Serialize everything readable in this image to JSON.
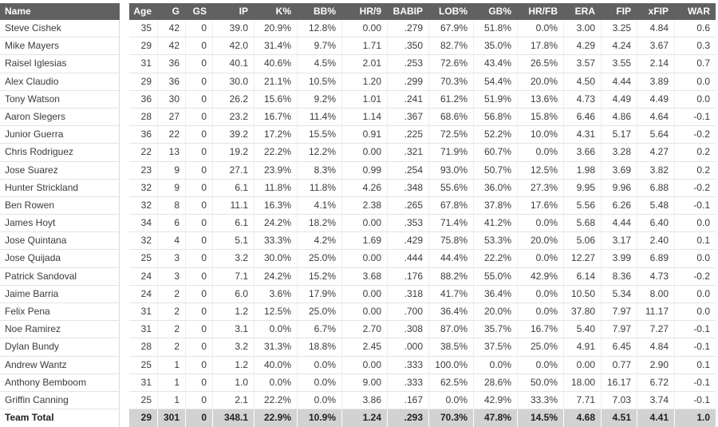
{
  "chart_data": {
    "type": "table",
    "columns": [
      {
        "id": "name",
        "label": "Name"
      },
      {
        "id": "age",
        "label": "Age"
      },
      {
        "id": "g",
        "label": "G"
      },
      {
        "id": "gs",
        "label": "GS"
      },
      {
        "id": "ip",
        "label": "IP"
      },
      {
        "id": "k-pct",
        "label": "K%"
      },
      {
        "id": "bb-pct",
        "label": "BB%"
      },
      {
        "id": "hr9",
        "label": "HR/9"
      },
      {
        "id": "babip",
        "label": "BABIP"
      },
      {
        "id": "lob-pct",
        "label": "LOB%"
      },
      {
        "id": "gb-pct",
        "label": "GB%"
      },
      {
        "id": "hrfb",
        "label": "HR/FB"
      },
      {
        "id": "era",
        "label": "ERA"
      },
      {
        "id": "fip",
        "label": "FIP"
      },
      {
        "id": "xfip",
        "label": "xFIP"
      },
      {
        "id": "war",
        "label": "WAR"
      }
    ],
    "rows": [
      {
        "name": "Steve Cishek",
        "values": [
          "35",
          "42",
          "0",
          "39.0",
          "20.9%",
          "12.8%",
          "0.00",
          ".279",
          "67.9%",
          "51.8%",
          "0.0%",
          "3.00",
          "3.25",
          "4.84",
          "0.6"
        ]
      },
      {
        "name": "Mike Mayers",
        "values": [
          "29",
          "42",
          "0",
          "42.0",
          "31.4%",
          "9.7%",
          "1.71",
          ".350",
          "82.7%",
          "35.0%",
          "17.8%",
          "4.29",
          "4.24",
          "3.67",
          "0.3"
        ]
      },
      {
        "name": "Raisel Iglesias",
        "values": [
          "31",
          "36",
          "0",
          "40.1",
          "40.6%",
          "4.5%",
          "2.01",
          ".253",
          "72.6%",
          "43.4%",
          "26.5%",
          "3.57",
          "3.55",
          "2.14",
          "0.7"
        ]
      },
      {
        "name": "Alex Claudio",
        "values": [
          "29",
          "36",
          "0",
          "30.0",
          "21.1%",
          "10.5%",
          "1.20",
          ".299",
          "70.3%",
          "54.4%",
          "20.0%",
          "4.50",
          "4.44",
          "3.89",
          "0.0"
        ]
      },
      {
        "name": "Tony Watson",
        "values": [
          "36",
          "30",
          "0",
          "26.2",
          "15.6%",
          "9.2%",
          "1.01",
          ".241",
          "61.2%",
          "51.9%",
          "13.6%",
          "4.73",
          "4.49",
          "4.49",
          "0.0"
        ]
      },
      {
        "name": "Aaron Slegers",
        "values": [
          "28",
          "27",
          "0",
          "23.2",
          "16.7%",
          "11.4%",
          "1.14",
          ".367",
          "68.6%",
          "56.8%",
          "15.8%",
          "6.46",
          "4.86",
          "4.64",
          "-0.1"
        ]
      },
      {
        "name": "Junior Guerra",
        "values": [
          "36",
          "22",
          "0",
          "39.2",
          "17.2%",
          "15.5%",
          "0.91",
          ".225",
          "72.5%",
          "52.2%",
          "10.0%",
          "4.31",
          "5.17",
          "5.64",
          "-0.2"
        ]
      },
      {
        "name": "Chris Rodriguez",
        "values": [
          "22",
          "13",
          "0",
          "19.2",
          "22.2%",
          "12.2%",
          "0.00",
          ".321",
          "71.9%",
          "60.7%",
          "0.0%",
          "3.66",
          "3.28",
          "4.27",
          "0.2"
        ]
      },
      {
        "name": "Jose Suarez",
        "values": [
          "23",
          "9",
          "0",
          "27.1",
          "23.9%",
          "8.3%",
          "0.99",
          ".254",
          "93.0%",
          "50.7%",
          "12.5%",
          "1.98",
          "3.69",
          "3.82",
          "0.2"
        ]
      },
      {
        "name": "Hunter Strickland",
        "values": [
          "32",
          "9",
          "0",
          "6.1",
          "11.8%",
          "11.8%",
          "4.26",
          ".348",
          "55.6%",
          "36.0%",
          "27.3%",
          "9.95",
          "9.96",
          "6.88",
          "-0.2"
        ]
      },
      {
        "name": "Ben Rowen",
        "values": [
          "32",
          "8",
          "0",
          "11.1",
          "16.3%",
          "4.1%",
          "2.38",
          ".265",
          "67.8%",
          "37.8%",
          "17.6%",
          "5.56",
          "6.26",
          "5.48",
          "-0.1"
        ]
      },
      {
        "name": "James Hoyt",
        "values": [
          "34",
          "6",
          "0",
          "6.1",
          "24.2%",
          "18.2%",
          "0.00",
          ".353",
          "71.4%",
          "41.2%",
          "0.0%",
          "5.68",
          "4.44",
          "6.40",
          "0.0"
        ]
      },
      {
        "name": "Jose Quintana",
        "values": [
          "32",
          "4",
          "0",
          "5.1",
          "33.3%",
          "4.2%",
          "1.69",
          ".429",
          "75.8%",
          "53.3%",
          "20.0%",
          "5.06",
          "3.17",
          "2.40",
          "0.1"
        ]
      },
      {
        "name": "Jose Quijada",
        "values": [
          "25",
          "3",
          "0",
          "3.2",
          "30.0%",
          "25.0%",
          "0.00",
          ".444",
          "44.4%",
          "22.2%",
          "0.0%",
          "12.27",
          "3.99",
          "6.89",
          "0.0"
        ]
      },
      {
        "name": "Patrick Sandoval",
        "values": [
          "24",
          "3",
          "0",
          "7.1",
          "24.2%",
          "15.2%",
          "3.68",
          ".176",
          "88.2%",
          "55.0%",
          "42.9%",
          "6.14",
          "8.36",
          "4.73",
          "-0.2"
        ]
      },
      {
        "name": "Jaime Barria",
        "values": [
          "24",
          "2",
          "0",
          "6.0",
          "3.6%",
          "17.9%",
          "0.00",
          ".318",
          "41.7%",
          "36.4%",
          "0.0%",
          "10.50",
          "5.34",
          "8.00",
          "0.0"
        ]
      },
      {
        "name": "Felix Pena",
        "values": [
          "31",
          "2",
          "0",
          "1.2",
          "12.5%",
          "25.0%",
          "0.00",
          ".700",
          "36.4%",
          "20.0%",
          "0.0%",
          "37.80",
          "7.97",
          "11.17",
          "0.0"
        ]
      },
      {
        "name": "Noe Ramirez",
        "values": [
          "31",
          "2",
          "0",
          "3.1",
          "0.0%",
          "6.7%",
          "2.70",
          ".308",
          "87.0%",
          "35.7%",
          "16.7%",
          "5.40",
          "7.97",
          "7.27",
          "-0.1"
        ]
      },
      {
        "name": "Dylan Bundy",
        "values": [
          "28",
          "2",
          "0",
          "3.2",
          "31.3%",
          "18.8%",
          "2.45",
          ".000",
          "38.5%",
          "37.5%",
          "25.0%",
          "4.91",
          "6.45",
          "4.84",
          "-0.1"
        ]
      },
      {
        "name": "Andrew Wantz",
        "values": [
          "25",
          "1",
          "0",
          "1.2",
          "40.0%",
          "0.0%",
          "0.00",
          ".333",
          "100.0%",
          "0.0%",
          "0.0%",
          "0.00",
          "0.77",
          "2.90",
          "0.1"
        ]
      },
      {
        "name": "Anthony Bemboom",
        "values": [
          "31",
          "1",
          "0",
          "1.0",
          "0.0%",
          "0.0%",
          "9.00",
          ".333",
          "62.5%",
          "28.6%",
          "50.0%",
          "18.00",
          "16.17",
          "6.72",
          "-0.1"
        ]
      },
      {
        "name": "Griffin Canning",
        "values": [
          "25",
          "1",
          "0",
          "2.1",
          "22.2%",
          "0.0%",
          "3.86",
          ".167",
          "0.0%",
          "42.9%",
          "33.3%",
          "7.71",
          "7.03",
          "3.74",
          "-0.1"
        ]
      }
    ],
    "total_row": {
      "name": "Team Total",
      "values": [
        "29",
        "301",
        "0",
        "348.1",
        "22.9%",
        "10.9%",
        "1.24",
        ".293",
        "70.3%",
        "47.8%",
        "14.5%",
        "4.68",
        "4.51",
        "4.41",
        "1.0"
      ]
    },
    "layout": {
      "legend": "none",
      "grid": "on",
      "frozen_first_column": true
    },
    "colors": {
      "header_bg": "#616161",
      "header_text": "#ffffff",
      "total_row_bg": "#d2d2d2",
      "row_line": "#e4e4e4",
      "column_line": "#efefef",
      "name_column_line": "#d9d9d9",
      "body_text": "#3b3b3b"
    }
  }
}
